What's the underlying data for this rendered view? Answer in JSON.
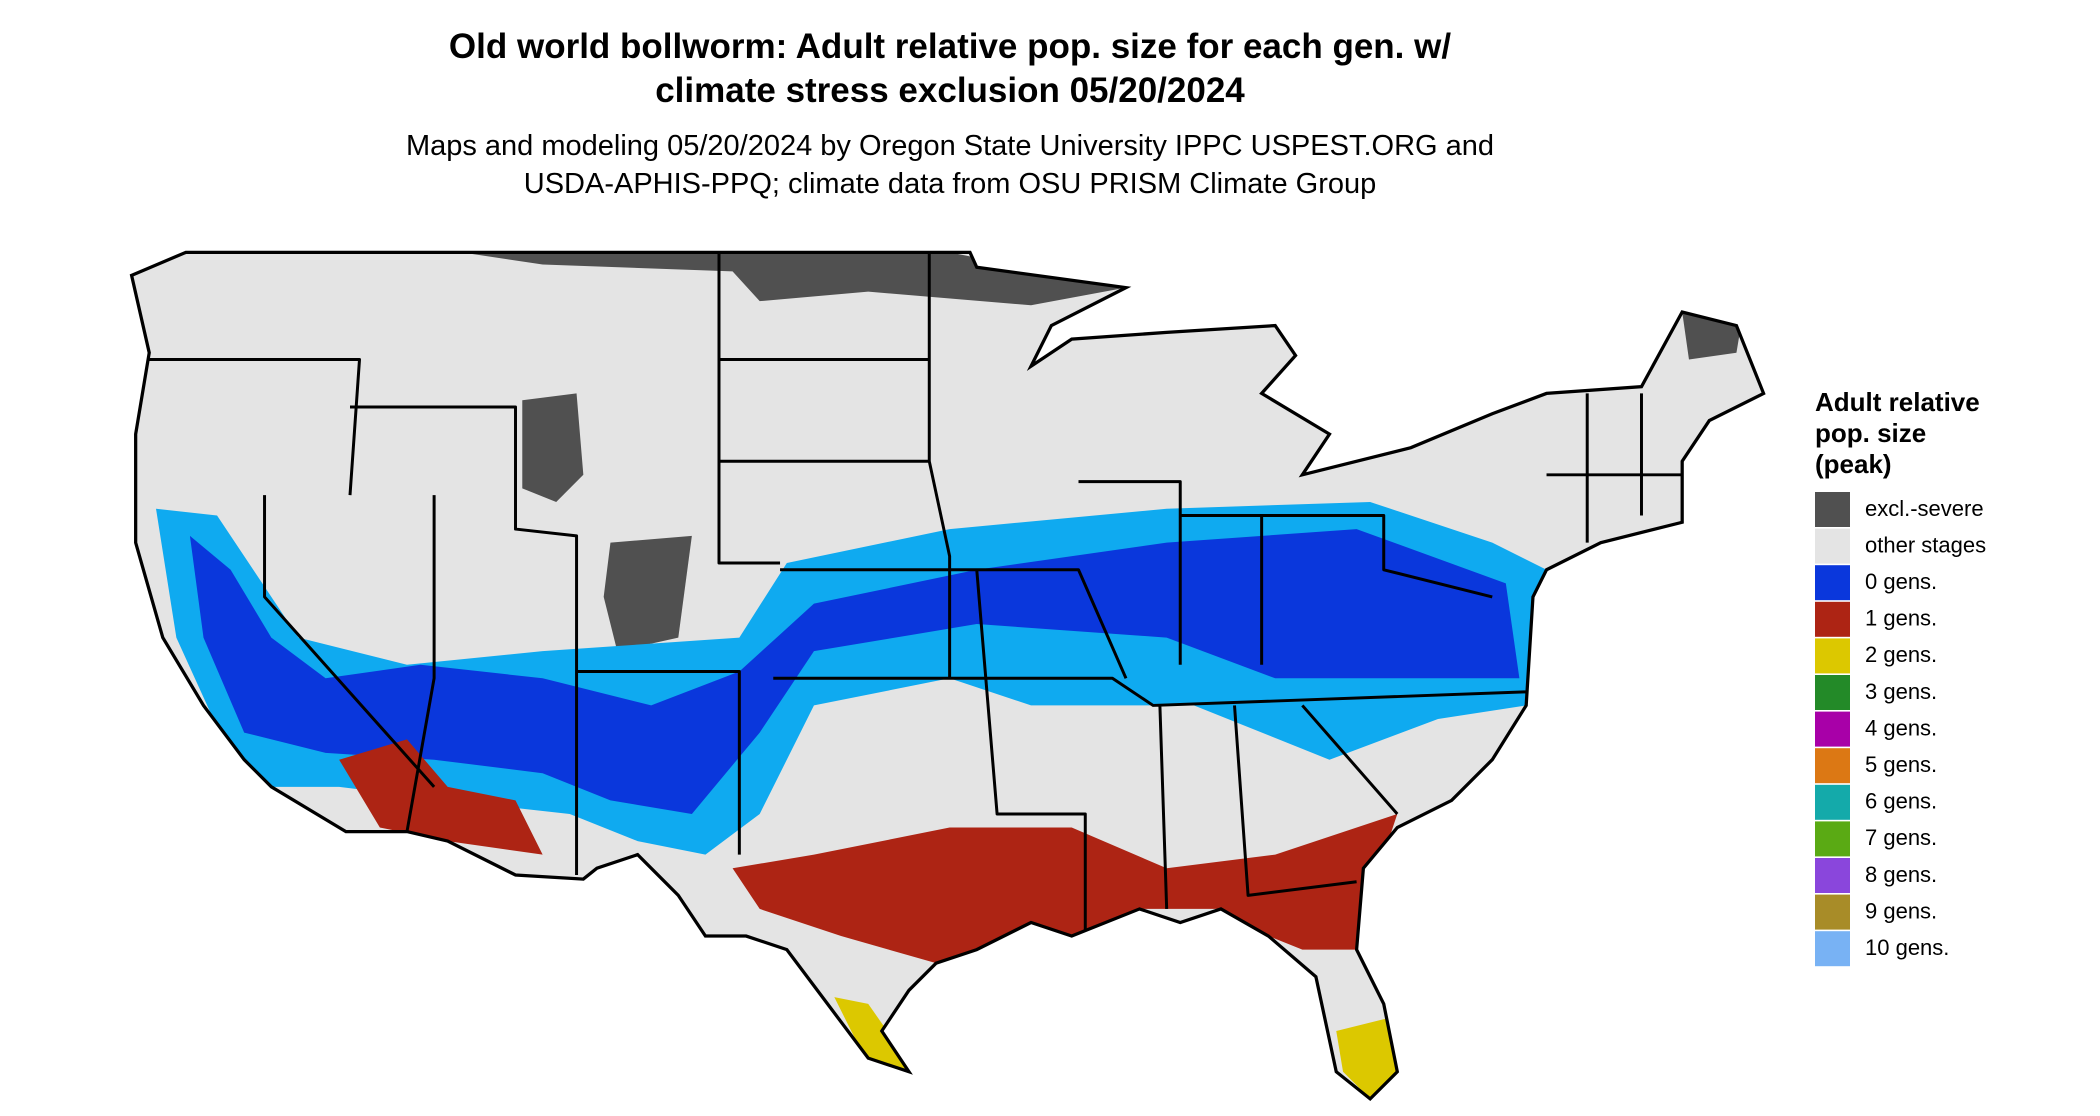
{
  "header": {
    "title": [
      "Old world bollworm: Adult relative pop. size for each gen. w/",
      "climate stress exclusion 05/20/2024"
    ],
    "subtitle": [
      "Maps and modeling 05/20/2024 by Oregon State University IPPC USPEST.ORG and",
      "USDA-APHIS-PPQ; climate data from OSU PRISM Climate Group"
    ]
  },
  "legend": {
    "title": [
      "Adult relative",
      "pop. size",
      "(peak)"
    ],
    "items": [
      {
        "label": "excl.-severe",
        "color": "#505050"
      },
      {
        "label": "other stages",
        "color": "#e4e4e4"
      },
      {
        "label": "0 gens.",
        "color": "#0a37dc"
      },
      {
        "label": "1 gens.",
        "color": "#ad2414"
      },
      {
        "label": "2 gens.",
        "color": "#dcc800"
      },
      {
        "label": "3 gens.",
        "color": "#238a28"
      },
      {
        "label": "4 gens.",
        "color": "#a800a8"
      },
      {
        "label": "5 gens.",
        "color": "#dc7814"
      },
      {
        "label": "6 gens.",
        "color": "#14aaaa"
      },
      {
        "label": "7 gens.",
        "color": "#5aaa14"
      },
      {
        "label": "8 gens.",
        "color": "#8a46dc"
      },
      {
        "label": "9 gens.",
        "color": "#a88c28"
      },
      {
        "label": "10 gens.",
        "color": "#78b2f4"
      }
    ]
  }
}
